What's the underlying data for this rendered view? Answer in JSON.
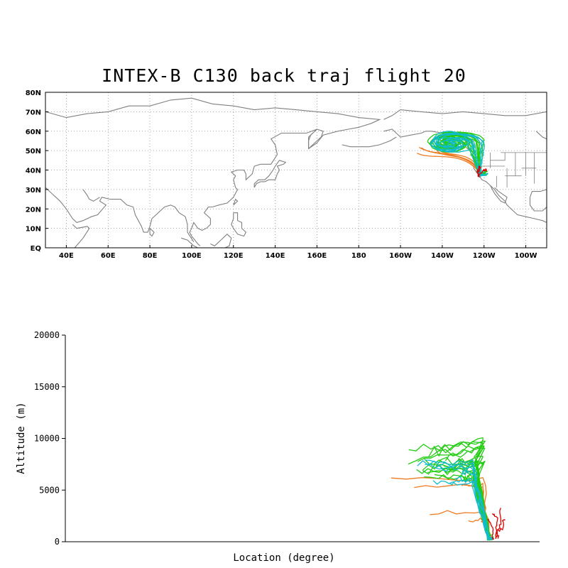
{
  "title": "INTEX-B C130 back traj flight 20",
  "colors": {
    "coast": "#808080",
    "grid": "#909090",
    "red": "#dd0000",
    "orange": "#f07a20",
    "green": "#22cc11",
    "cyan": "#11bbcc"
  },
  "chart_data": [
    {
      "type": "map",
      "projection": "cylindrical",
      "lon_range": [
        30,
        270
      ],
      "lat_range": [
        0,
        80
      ],
      "grid": true,
      "lat_labels": [
        "80N",
        "70N",
        "60N",
        "50N",
        "40N",
        "30N",
        "20N",
        "10N",
        "EQ"
      ],
      "lon_labels": [
        "40E",
        "60E",
        "80E",
        "100E",
        "120E",
        "140E",
        "160E",
        "180",
        "160W",
        "140W",
        "120W",
        "100W"
      ],
      "series_colors": [
        "red",
        "orange",
        "green",
        "cyan"
      ]
    },
    {
      "type": "line",
      "xlabel": "Location (degree)",
      "ylabel": "Altitude (m)",
      "ylim": [
        0,
        20000
      ],
      "y_ticks": [
        "0",
        "5000",
        "10000",
        "15000",
        "20000"
      ],
      "series_colors": [
        "red",
        "orange",
        "green",
        "cyan"
      ]
    }
  ]
}
